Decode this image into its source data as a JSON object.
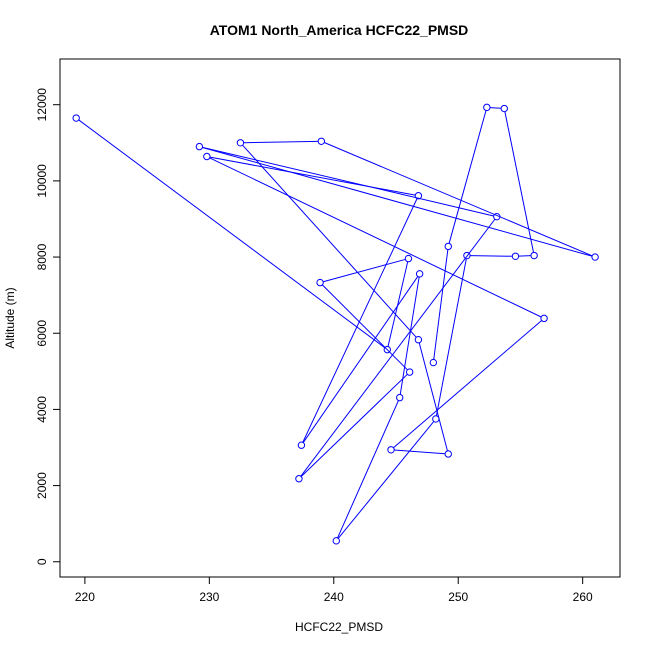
{
  "chart_data": {
    "type": "line",
    "title": "ATOM1 North_America HCFC22_PMSD",
    "xlabel": "HCFC22_PMSD",
    "ylabel": "Altitude (m)",
    "xlim": [
      218,
      263
    ],
    "ylim": [
      -400,
      13200
    ],
    "x_ticks": [
      220,
      230,
      240,
      250,
      260
    ],
    "y_ticks": [
      0,
      2000,
      4000,
      6000,
      8000,
      10000,
      12000
    ],
    "x_tick_labels": [
      "220",
      "230",
      "240",
      "250",
      "260"
    ],
    "y_tick_labels": [
      "0",
      "2000",
      "4000",
      "6000",
      "8000",
      "10000",
      "12000"
    ],
    "series": [
      {
        "color": "#0000ff",
        "marker": "open-circle",
        "points": [
          {
            "x": 219.3,
            "y": 11650
          },
          {
            "x": 244.3,
            "y": 5570
          },
          {
            "x": 246.0,
            "y": 7960
          },
          {
            "x": 238.9,
            "y": 7330
          },
          {
            "x": 246.1,
            "y": 4980
          },
          {
            "x": 237.2,
            "y": 2180
          },
          {
            "x": 253.1,
            "y": 9060
          },
          {
            "x": 229.2,
            "y": 10900
          },
          {
            "x": 261.0,
            "y": 8000
          },
          {
            "x": 239.0,
            "y": 11040
          },
          {
            "x": 232.5,
            "y": 11000
          },
          {
            "x": 246.8,
            "y": 5830
          },
          {
            "x": 249.2,
            "y": 2830
          },
          {
            "x": 244.6,
            "y": 2940
          },
          {
            "x": 256.9,
            "y": 6390
          },
          {
            "x": 229.8,
            "y": 10640
          },
          {
            "x": 246.8,
            "y": 9610
          },
          {
            "x": 237.4,
            "y": 3060
          },
          {
            "x": 246.9,
            "y": 7560
          },
          {
            "x": 245.3,
            "y": 4310
          },
          {
            "x": 240.2,
            "y": 550
          },
          {
            "x": 248.2,
            "y": 3750
          },
          {
            "x": 250.7,
            "y": 8040
          },
          {
            "x": 254.6,
            "y": 8020
          },
          {
            "x": 256.1,
            "y": 8040
          },
          {
            "x": 253.7,
            "y": 11900
          },
          {
            "x": 252.3,
            "y": 11930
          },
          {
            "x": 249.2,
            "y": 8280
          },
          {
            "x": 248.0,
            "y": 5230
          }
        ]
      }
    ],
    "style": {
      "line_color": "#0000ff",
      "axis_color": "#000000",
      "background": "#ffffff"
    }
  }
}
